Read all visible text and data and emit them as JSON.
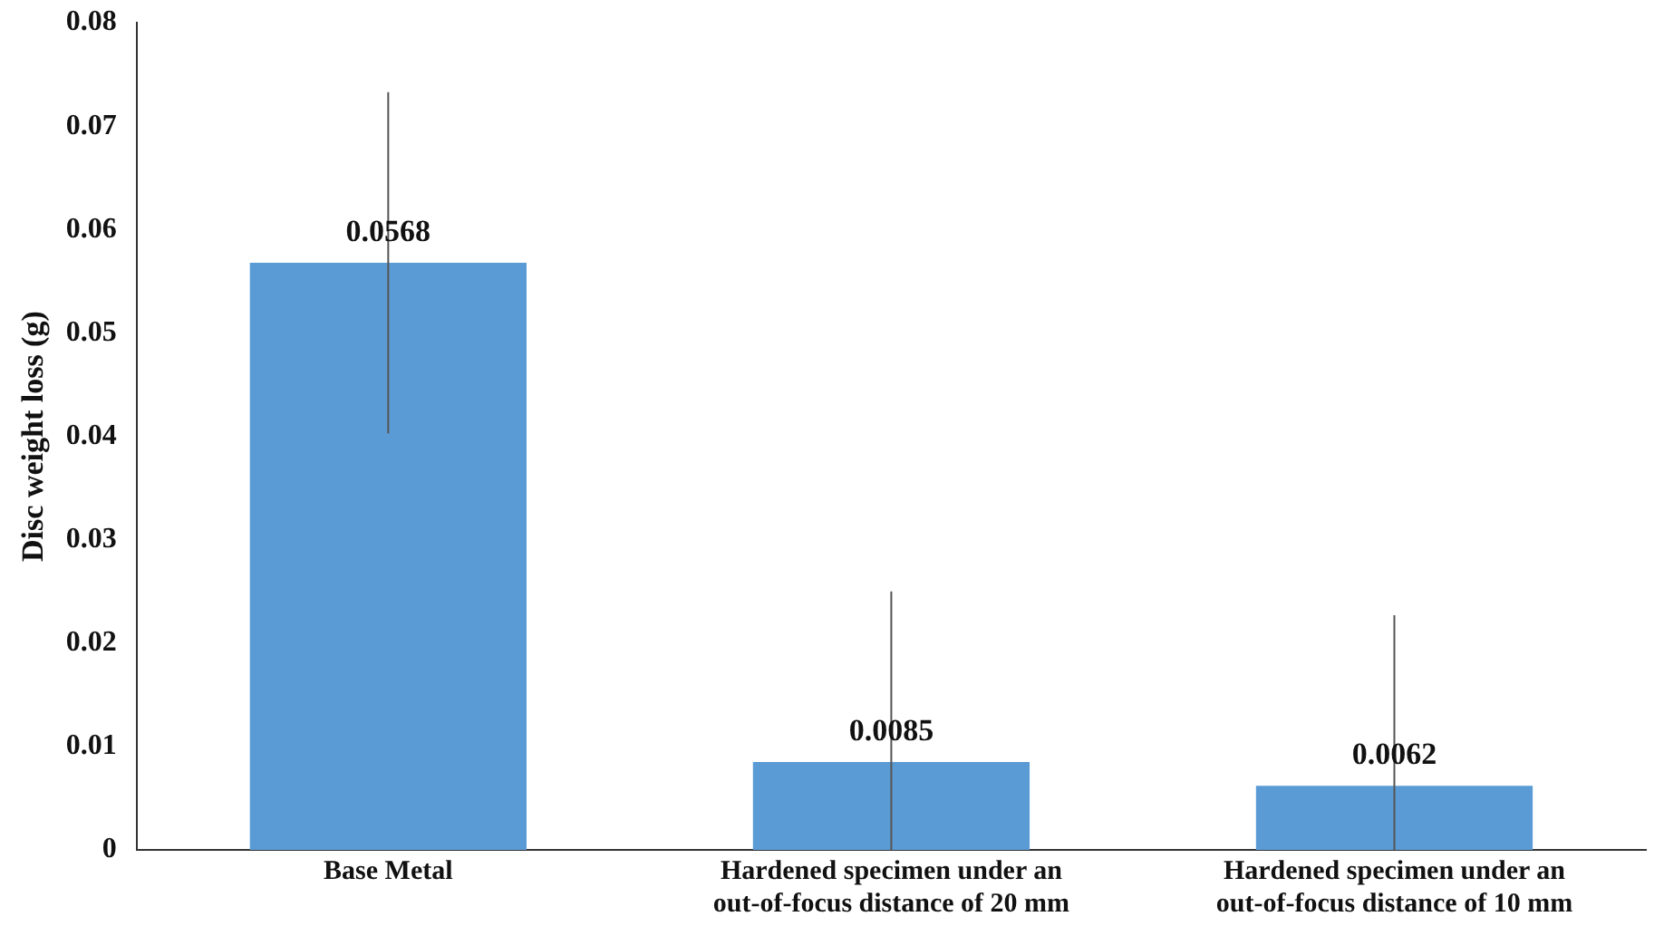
{
  "chart_data": {
    "type": "bar",
    "ylabel": "Disc weight loss (g)",
    "categories": [
      "Base Metal",
      "Hardened specimen under an out-of-focus distance of 20 mm",
      "Hardened specimen under an out-of-focus distance of 10 mm"
    ],
    "values": [
      0.0568,
      0.0085,
      0.0062
    ],
    "errors": [
      [
        0.0403,
        0.0733
      ],
      [
        0,
        0.025
      ],
      [
        0,
        0.0227
      ]
    ],
    "color": "#5b9bd5",
    "ylim": [
      0,
      0.08
    ],
    "yticks": [
      0,
      0.01,
      0.02,
      0.03,
      0.04,
      0.05,
      0.06,
      0.07,
      0.08
    ],
    "grid": false,
    "legend": false,
    "data_labels": true
  }
}
